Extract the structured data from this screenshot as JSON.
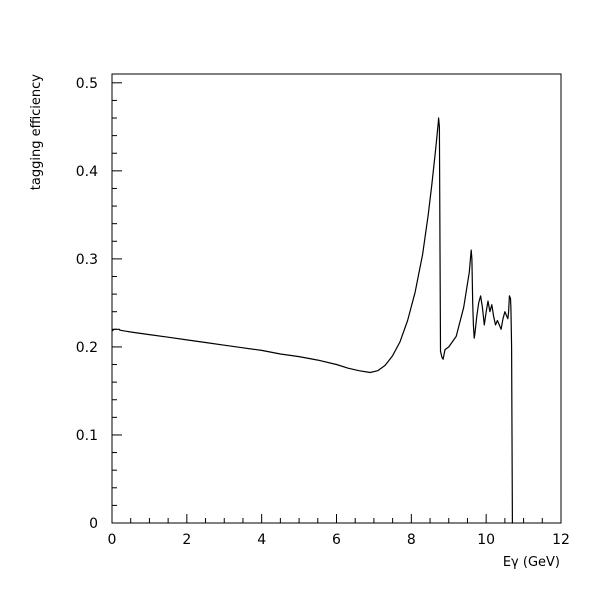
{
  "chart_data": {
    "type": "line",
    "title": "",
    "xlabel": "Eγ (GeV)",
    "ylabel": "tagging efficiency",
    "xlim": [
      0,
      12
    ],
    "ylim": [
      0,
      0.51
    ],
    "x_ticks": [
      0,
      2,
      4,
      6,
      8,
      10,
      12
    ],
    "x_tick_labels": [
      "0",
      "2",
      "4",
      "6",
      "8",
      "10",
      "12"
    ],
    "y_ticks": [
      0,
      0.1,
      0.2,
      0.3,
      0.4,
      0.5
    ],
    "y_tick_labels": [
      "0",
      "0.1",
      "0.2",
      "0.3",
      "0.4",
      "0.5"
    ],
    "x_minor_step": 0.5,
    "y_minor_step": 0.02,
    "grid": false,
    "legend": false,
    "series": [
      {
        "color": "#000000",
        "x": [
          0,
          0.05,
          0.2,
          0.21,
          0.5,
          1,
          1.5,
          2,
          2.5,
          3,
          3.5,
          4,
          4.5,
          5,
          5.5,
          6,
          6.3,
          6.6,
          6.9,
          7.1,
          7.3,
          7.5,
          7.7,
          7.9,
          8.1,
          8.3,
          8.45,
          8.55,
          8.65,
          8.72,
          8.73,
          8.75,
          8.78,
          8.82,
          8.85,
          8.9,
          9.0,
          9.2,
          9.4,
          9.55,
          9.6,
          9.62,
          9.64,
          9.66,
          9.68,
          9.7,
          9.75,
          9.8,
          9.85,
          9.9,
          9.95,
          10.0,
          10.05,
          10.1,
          10.15,
          10.2,
          10.25,
          10.3,
          10.35,
          10.4,
          10.45,
          10.5,
          10.55,
          10.58,
          10.6,
          10.62,
          10.65,
          10.66,
          10.68,
          10.69,
          10.7,
          10.72
        ],
        "y": [
          0.218,
          0.22,
          0.22,
          0.219,
          0.217,
          0.214,
          0.211,
          0.208,
          0.205,
          0.202,
          0.199,
          0.196,
          0.192,
          0.189,
          0.185,
          0.18,
          0.176,
          0.173,
          0.171,
          0.173,
          0.179,
          0.19,
          0.206,
          0.23,
          0.262,
          0.305,
          0.35,
          0.385,
          0.425,
          0.455,
          0.46,
          0.45,
          0.195,
          0.188,
          0.186,
          0.197,
          0.2,
          0.212,
          0.245,
          0.285,
          0.31,
          0.3,
          0.25,
          0.225,
          0.21,
          0.215,
          0.235,
          0.25,
          0.258,
          0.245,
          0.225,
          0.24,
          0.252,
          0.24,
          0.248,
          0.235,
          0.225,
          0.23,
          0.225,
          0.22,
          0.232,
          0.24,
          0.235,
          0.232,
          0.24,
          0.258,
          0.255,
          0.245,
          0.2,
          0.1,
          0,
          0
        ]
      }
    ]
  }
}
